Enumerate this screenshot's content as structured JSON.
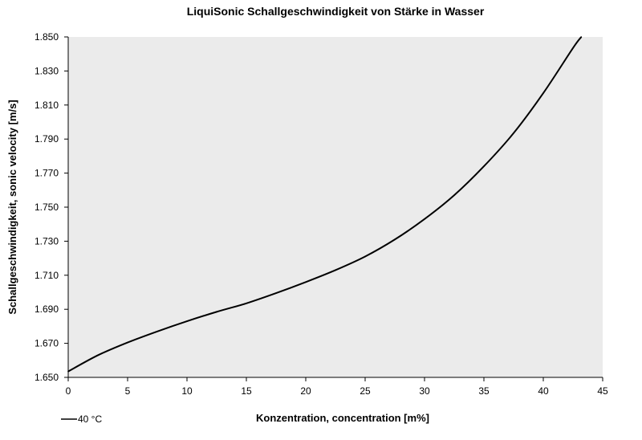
{
  "chart_data": {
    "type": "line",
    "title": "LiquiSonic Schallgeschwindigkeit von Stärke in Wasser",
    "xlabel": "Konzentration, concentration [m%]",
    "ylabel": "Schallgeschwindigkeit, sonic velocity [m/s]",
    "xlim": [
      0,
      45
    ],
    "ylim": [
      1650,
      1850
    ],
    "x_ticks": [
      0,
      5,
      10,
      15,
      20,
      25,
      30,
      35,
      40,
      45
    ],
    "x_tick_labels": [
      "0",
      "5",
      "10",
      "15",
      "20",
      "25",
      "30",
      "35",
      "40",
      "45"
    ],
    "y_ticks": [
      1650,
      1670,
      1690,
      1710,
      1730,
      1750,
      1770,
      1790,
      1810,
      1830,
      1850
    ],
    "y_tick_labels": [
      "1.650",
      "1.670",
      "1.690",
      "1.710",
      "1.730",
      "1.750",
      "1.770",
      "1.790",
      "1.810",
      "1.830",
      "1.850"
    ],
    "grid": false,
    "legend_placement": "bottom-left",
    "plot_background": "#ebebeb",
    "series": [
      {
        "name": "40 °C",
        "color": "#000000",
        "x": [
          0,
          2.5,
          5,
          7.5,
          10,
          12.5,
          15,
          17.5,
          20,
          22.5,
          25,
          27.5,
          30,
          32.5,
          35,
          37.5,
          40,
          42.5,
          43.2
        ],
        "y": [
          1653.5,
          1663,
          1670.5,
          1677,
          1683,
          1688.5,
          1693.5,
          1699.5,
          1706,
          1713,
          1721,
          1731,
          1743,
          1757,
          1774,
          1793.5,
          1817,
          1843.5,
          1850
        ]
      }
    ]
  }
}
